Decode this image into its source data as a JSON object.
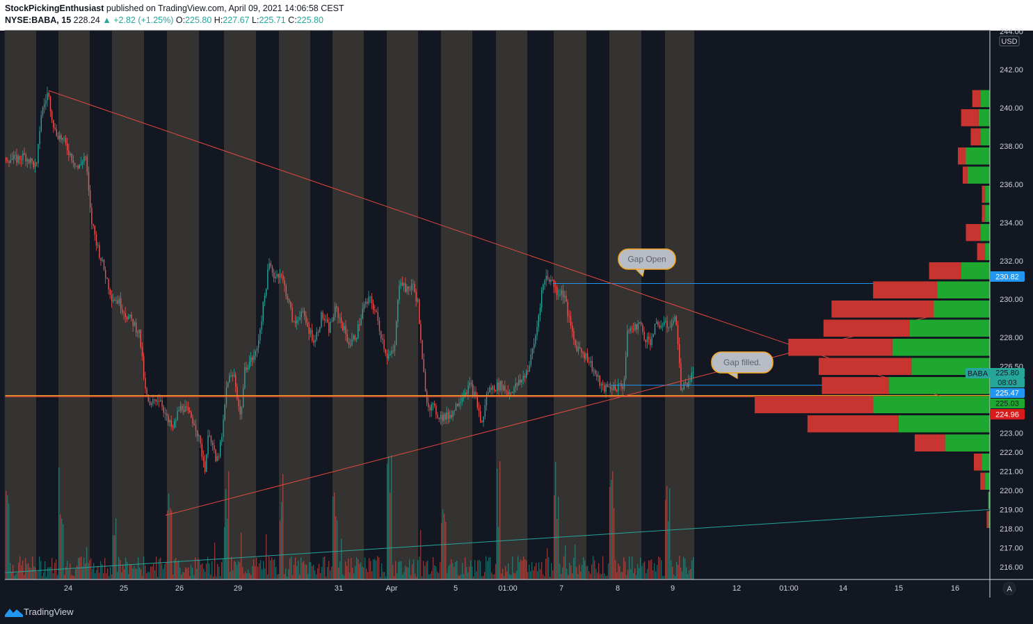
{
  "header": {
    "author": "StockPickingEnthusiast",
    "published": "published on TradingView.com, April 09, 2021 14:06:58 CEST",
    "symbol": "NYSE:BABA, 15",
    "last": "228.24",
    "change": "▲ +2.82 (+1.25%)",
    "o_label": "O:",
    "o": "225.80",
    "h_label": "H:",
    "h": "227.67",
    "l_label": "L:",
    "l": "225.71",
    "c_label": "C:",
    "c": "225.80"
  },
  "footer": {
    "brand": "TradingView"
  },
  "axis": {
    "currency": "USD",
    "auto_button": "A"
  },
  "colors": {
    "background": "#131722",
    "session_shade": "#3a3633",
    "up": "#26a69a",
    "down": "#ef5350",
    "trendline": "#e5493e",
    "hline": "#2196f3",
    "support": "#f5a623",
    "vp_up": "#1fa82f",
    "vp_down": "#c8342f",
    "callout_border": "#f5a623",
    "callout_fill": "#b8bcc4"
  },
  "chart_data": {
    "type": "candlestick",
    "title": "NYSE:BABA, 15",
    "ylim": [
      215.4,
      244.2
    ],
    "y_ticks": [
      "244.00",
      "242.00",
      "240.00",
      "238.00",
      "236.00",
      "234.00",
      "232.00",
      "230.00",
      "228.00",
      "226.50",
      "223.00",
      "222.00",
      "221.00",
      "220.00",
      "219.00",
      "218.00",
      "217.00",
      "216.00"
    ],
    "x_ticks": [
      "24",
      "25",
      "26",
      "29",
      "31",
      "Apr",
      "5",
      "01:00",
      "7",
      "8",
      "9",
      "12",
      "01:00",
      "14",
      "15",
      "16"
    ],
    "price_close_path": [
      [
        0,
        237.4
      ],
      [
        22,
        237.3
      ],
      [
        35,
        237.5
      ],
      [
        52,
        236.9
      ],
      [
        58,
        239.6
      ],
      [
        68,
        240.8
      ],
      [
        78,
        238.8
      ],
      [
        90,
        238.3
      ],
      [
        100,
        237.6
      ],
      [
        112,
        236.8
      ],
      [
        122,
        237.6
      ],
      [
        130,
        234.2
      ],
      [
        140,
        232.7
      ],
      [
        150,
        231.4
      ],
      [
        160,
        230.1
      ],
      [
        170,
        229.9
      ],
      [
        180,
        229.2
      ],
      [
        190,
        228.8
      ],
      [
        200,
        228.2
      ],
      [
        208,
        225.2
      ],
      [
        215,
        224.3
      ],
      [
        222,
        224.8
      ],
      [
        230,
        224.8
      ],
      [
        240,
        223.6
      ],
      [
        248,
        223.2
      ],
      [
        256,
        224.2
      ],
      [
        262,
        224.4
      ],
      [
        270,
        224.0
      ],
      [
        280,
        223.5
      ],
      [
        288,
        222.2
      ],
      [
        294,
        221.2
      ],
      [
        300,
        223.2
      ],
      [
        310,
        221.4
      ],
      [
        318,
        222.6
      ],
      [
        326,
        225.8
      ],
      [
        336,
        226.0
      ],
      [
        345,
        223.8
      ],
      [
        352,
        226.5
      ],
      [
        360,
        226.8
      ],
      [
        368,
        227.2
      ],
      [
        378,
        229.7
      ],
      [
        386,
        231.8
      ],
      [
        394,
        231.2
      ],
      [
        402,
        231.4
      ],
      [
        412,
        230.2
      ],
      [
        422,
        228.6
      ],
      [
        432,
        229.4
      ],
      [
        442,
        228.5
      ],
      [
        452,
        227.8
      ],
      [
        462,
        229.2
      ],
      [
        472,
        228.4
      ],
      [
        482,
        229.5
      ],
      [
        492,
        228.6
      ],
      [
        502,
        227.6
      ],
      [
        512,
        228.2
      ],
      [
        522,
        229.6
      ],
      [
        532,
        230.0
      ],
      [
        540,
        229.2
      ],
      [
        548,
        228.0
      ],
      [
        556,
        227.0
      ],
      [
        566,
        227.2
      ],
      [
        574,
        231.2
      ],
      [
        584,
        230.4
      ],
      [
        592,
        230.8
      ],
      [
        600,
        229.8
      ],
      [
        606,
        226.8
      ],
      [
        614,
        224.5
      ],
      [
        622,
        224.3
      ],
      [
        630,
        223.9
      ],
      [
        640,
        223.8
      ],
      [
        650,
        224.1
      ],
      [
        660,
        224.8
      ],
      [
        668,
        225.2
      ],
      [
        676,
        225.5
      ],
      [
        684,
        224.7
      ],
      [
        692,
        223.4
      ],
      [
        700,
        225.2
      ],
      [
        710,
        225.4
      ],
      [
        720,
        225.5
      ],
      [
        730,
        225.1
      ],
      [
        740,
        225.4
      ],
      [
        750,
        225.8
      ],
      [
        760,
        226.5
      ],
      [
        770,
        228.2
      ],
      [
        778,
        230.4
      ],
      [
        784,
        231.2
      ],
      [
        792,
        231.0
      ],
      [
        800,
        230.4
      ],
      [
        810,
        230.3
      ],
      [
        818,
        228.8
      ],
      [
        826,
        227.6
      ],
      [
        836,
        227.3
      ],
      [
        846,
        226.8
      ],
      [
        856,
        226.0
      ],
      [
        866,
        225.3
      ],
      [
        876,
        225.4
      ],
      [
        886,
        225.4
      ],
      [
        896,
        225.5
      ],
      [
        902,
        228.5
      ],
      [
        910,
        228.4
      ],
      [
        918,
        228.8
      ],
      [
        926,
        228.0
      ],
      [
        934,
        227.8
      ],
      [
        942,
        228.6
      ],
      [
        950,
        228.7
      ],
      [
        958,
        228.6
      ],
      [
        966,
        228.8
      ],
      [
        972,
        228.9
      ],
      [
        978,
        225.3
      ],
      [
        986,
        225.6
      ],
      [
        996,
        226.1
      ]
    ],
    "horizontal_lines": [
      {
        "name": "gap-open-level",
        "price": 230.82,
        "color": "#2196f3"
      },
      {
        "name": "gap-filled-level",
        "price": 225.5,
        "color": "#2196f3"
      },
      {
        "name": "support-level",
        "price": 224.96,
        "color": "#f5a623"
      },
      {
        "name": "support-level-red",
        "price": 224.96,
        "color": "#e5493e"
      }
    ],
    "trendlines": [
      {
        "name": "descending-trendline",
        "from_bar": 70,
        "from_price": 240.9,
        "to_bar": 1422,
        "to_price": 224.05,
        "color": "#e5493e"
      },
      {
        "name": "ascending-trendline",
        "from_bar": 238,
        "from_price": 218.7,
        "to_bar": 1422,
        "to_price": 229.9,
        "color": "#e5493e"
      },
      {
        "name": "long-term-support",
        "from_bar": 7,
        "from_price": 215.7,
        "to_bar": 1422,
        "to_price": 219.0,
        "color": "#26a69a"
      }
    ],
    "volume_profile": [
      {
        "price": 240.5,
        "up": 12,
        "down": 10
      },
      {
        "price": 239.5,
        "up": 14,
        "down": 22
      },
      {
        "price": 238.5,
        "up": 12,
        "down": 12
      },
      {
        "price": 237.5,
        "up": 30,
        "down": 10
      },
      {
        "price": 236.5,
        "up": 28,
        "down": 6
      },
      {
        "price": 235.5,
        "up": 6,
        "down": 4
      },
      {
        "price": 234.5,
        "up": 6,
        "down": 4
      },
      {
        "price": 233.5,
        "up": 12,
        "down": 18
      },
      {
        "price": 232.5,
        "up": 6,
        "down": 10
      },
      {
        "price": 231.5,
        "up": 36,
        "down": 40
      },
      {
        "price": 230.5,
        "up": 66,
        "down": 80
      },
      {
        "price": 229.5,
        "up": 70,
        "down": 128
      },
      {
        "price": 228.5,
        "up": 100,
        "down": 108
      },
      {
        "price": 227.5,
        "up": 122,
        "down": 130
      },
      {
        "price": 226.5,
        "up": 98,
        "down": 116
      },
      {
        "price": 225.5,
        "up": 126,
        "down": 84
      },
      {
        "price": 224.5,
        "up": 146,
        "down": 148
      },
      {
        "price": 223.5,
        "up": 114,
        "down": 114
      },
      {
        "price": 222.5,
        "up": 56,
        "down": 38
      },
      {
        "price": 221.5,
        "up": 10,
        "down": 10
      },
      {
        "price": 220.5,
        "up": 6,
        "down": 6
      },
      {
        "price": 219.5,
        "up": 2,
        "down": 0
      },
      {
        "price": 218.5,
        "up": 2,
        "down": 2
      }
    ],
    "price_labels": [
      {
        "name": "label-230-82",
        "text": "230.82",
        "price": 230.82,
        "bg": "#2196f3",
        "fg": "#ffffff"
      },
      {
        "name": "label-baba",
        "text": "BABA",
        "price": 225.8,
        "bg": "#26a69a",
        "fg": "#131722"
      },
      {
        "name": "label-225-80",
        "text": "225.80",
        "price": 225.8,
        "bg": "#26a69a",
        "fg": "#131722"
      },
      {
        "name": "label-countdown",
        "text": "08:03",
        "price": 225.3,
        "bg": "#26a69a",
        "fg": "#131722"
      },
      {
        "name": "label-225-47",
        "text": "225.47",
        "price": 225.47,
        "bg": "#2196f3",
        "fg": "#ffffff"
      },
      {
        "name": "label-225-03",
        "text": "225.03",
        "price": 225.03,
        "bg": "#1fa82f",
        "fg": "#131722"
      },
      {
        "name": "label-224-96",
        "text": "224.96",
        "price": 224.96,
        "bg": "#d81b1b",
        "fg": "#ffffff"
      }
    ],
    "annotations": [
      {
        "name": "gap-open-callout",
        "text": "Gap Open"
      },
      {
        "name": "gap-filled-callout",
        "text": "Gap filled."
      }
    ]
  }
}
